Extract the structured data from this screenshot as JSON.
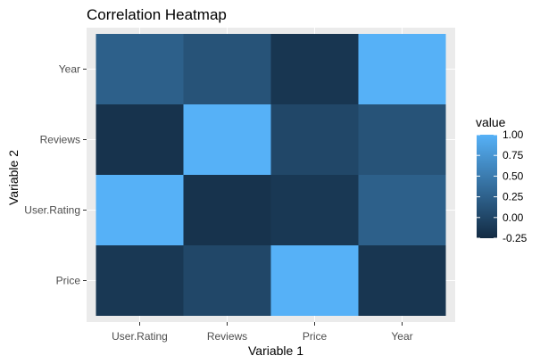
{
  "chart_data": {
    "type": "heatmap",
    "title": "Correlation Heatmap",
    "xlabel": "Variable 1",
    "ylabel": "Variable 2",
    "x_categories": [
      "User.Rating",
      "Reviews",
      "Price",
      "Year"
    ],
    "y_categories": [
      "Price",
      "User.Rating",
      "Reviews",
      "Year"
    ],
    "cells": [
      {
        "x": "User.Rating",
        "y": "Price",
        "value": -0.13
      },
      {
        "x": "Reviews",
        "y": "Price",
        "value": 0.01
      },
      {
        "x": "Price",
        "y": "Price",
        "value": 1.0
      },
      {
        "x": "Year",
        "y": "Price",
        "value": -0.15
      },
      {
        "x": "User.Rating",
        "y": "User.Rating",
        "value": 1.0
      },
      {
        "x": "Reviews",
        "y": "User.Rating",
        "value": -0.18
      },
      {
        "x": "Price",
        "y": "User.Rating",
        "value": -0.13
      },
      {
        "x": "Year",
        "y": "User.Rating",
        "value": 0.24
      },
      {
        "x": "User.Rating",
        "y": "Reviews",
        "value": -0.18
      },
      {
        "x": "Reviews",
        "y": "Reviews",
        "value": 1.0
      },
      {
        "x": "Price",
        "y": "Reviews",
        "value": 0.01
      },
      {
        "x": "Year",
        "y": "Reviews",
        "value": 0.12
      },
      {
        "x": "User.Rating",
        "y": "Year",
        "value": 0.24
      },
      {
        "x": "Reviews",
        "y": "Year",
        "value": 0.12
      },
      {
        "x": "Price",
        "y": "Year",
        "value": -0.15
      },
      {
        "x": "Year",
        "y": "Year",
        "value": 1.0
      }
    ],
    "color_scale": {
      "min": -0.25,
      "max": 1.0,
      "low_color": "#132B43",
      "high_color": "#56B1F7"
    },
    "legend": {
      "title": "value",
      "position": "right",
      "breaks": [
        1.0,
        0.75,
        0.5,
        0.25,
        0.0,
        -0.25
      ],
      "labels": [
        "1.00",
        "0.75",
        "0.50",
        "0.25",
        "0.00",
        "-0.25"
      ]
    },
    "panel_background": "#EBEBEB",
    "grid": true
  }
}
